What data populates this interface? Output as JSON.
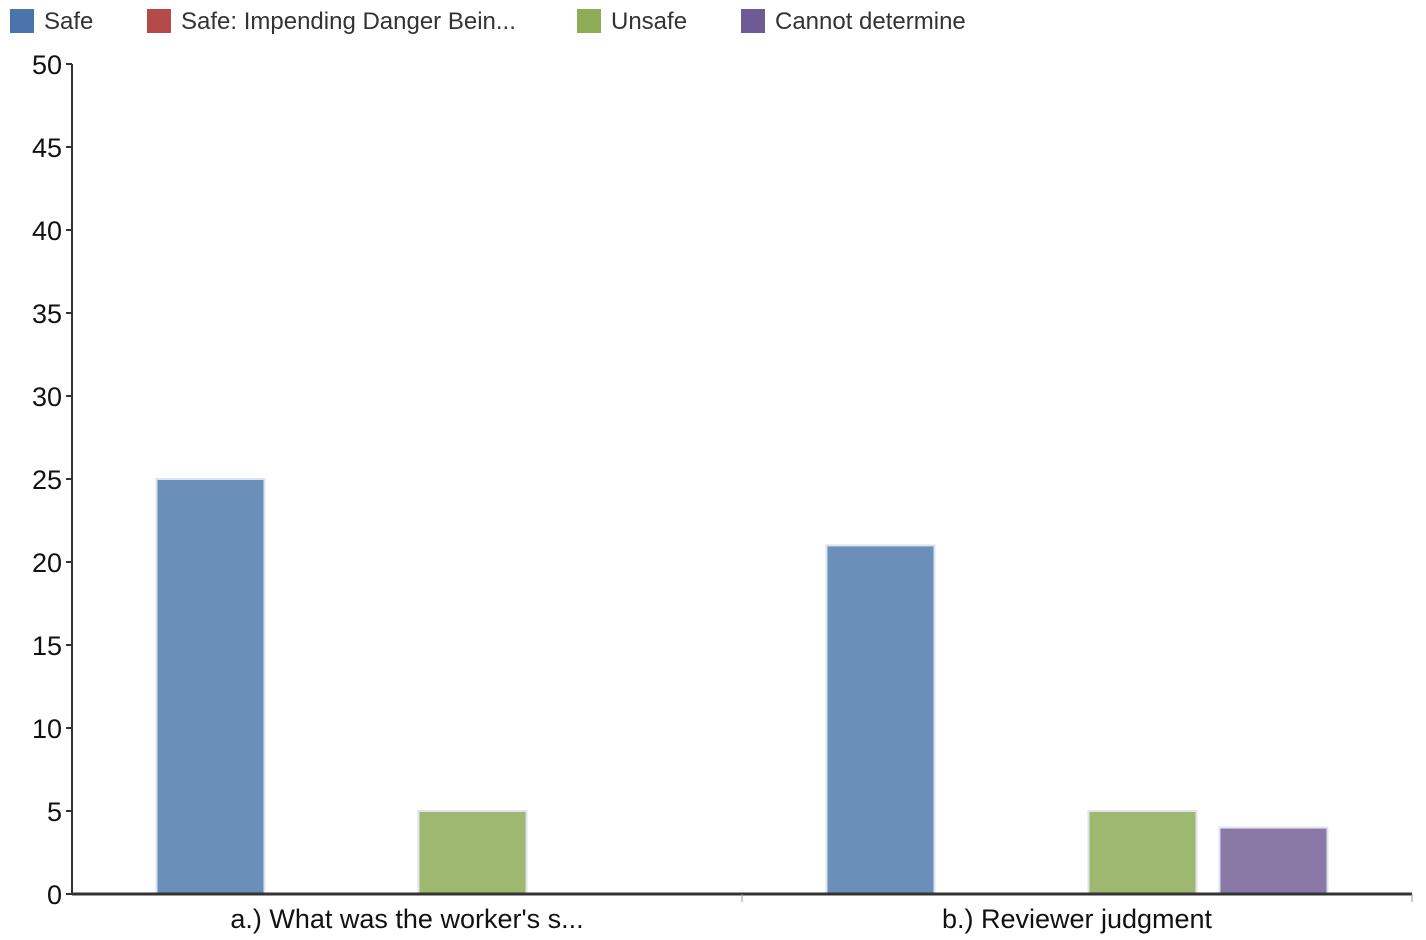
{
  "chart_data": {
    "type": "bar",
    "categories": [
      "a.) What was the worker's s...",
      "b.) Reviewer judgment"
    ],
    "series": [
      {
        "name": "Safe",
        "color": "#6a8fb8",
        "swatch": "#4a74aa",
        "values": [
          25,
          21
        ]
      },
      {
        "name": "Safe: Impending Danger Bein...",
        "color": "#b54a4a",
        "swatch": "#b54a4a",
        "values": [
          0,
          0
        ]
      },
      {
        "name": "Unsafe",
        "color": "#9eb870",
        "swatch": "#8eab55",
        "values": [
          5,
          5
        ]
      },
      {
        "name": "Cannot determine",
        "color": "#8a78a6",
        "swatch": "#6e5a94",
        "values": [
          0,
          4
        ]
      }
    ],
    "yticks": [
      0,
      5,
      10,
      15,
      20,
      25,
      30,
      35,
      40,
      45,
      50
    ],
    "ylim": [
      0,
      50
    ],
    "legend_position": "top-left",
    "grid": false
  }
}
